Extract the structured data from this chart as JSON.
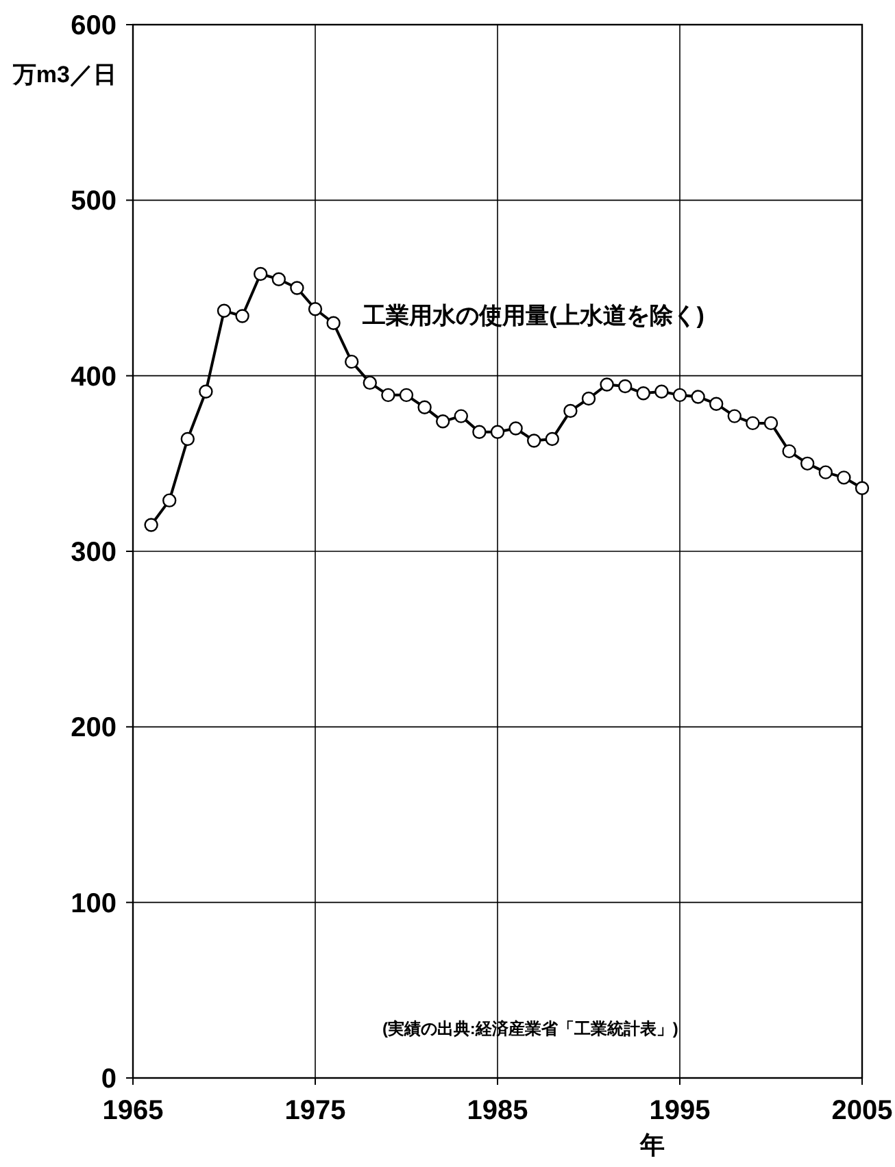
{
  "chart_data": {
    "type": "line",
    "xlabel": "年",
    "ylabel": "万m3／日",
    "x": [
      1966,
      1967,
      1968,
      1969,
      1970,
      1971,
      1972,
      1973,
      1974,
      1975,
      1976,
      1977,
      1978,
      1979,
      1980,
      1981,
      1982,
      1983,
      1984,
      1985,
      1986,
      1987,
      1988,
      1989,
      1990,
      1991,
      1992,
      1993,
      1994,
      1995,
      1996,
      1997,
      1998,
      1999,
      2000,
      2001,
      2002,
      2003,
      2004,
      2005
    ],
    "series": [
      {
        "name": "工業用水の使用量(上水道を除く)",
        "color": "#000000",
        "values": [
          315,
          329,
          364,
          391,
          437,
          434,
          458,
          455,
          450,
          438,
          430,
          408,
          396,
          389,
          389,
          382,
          374,
          377,
          368,
          368,
          370,
          363,
          364,
          380,
          387,
          395,
          394,
          390,
          391,
          389,
          388,
          384,
          377,
          373,
          373,
          357,
          350,
          345,
          342,
          336
        ]
      }
    ],
    "xlim": [
      1965,
      2005
    ],
    "xticks": [
      1965,
      1975,
      1985,
      1995,
      2005
    ],
    "ylim": [
      0,
      600
    ],
    "yticks": [
      0,
      100,
      200,
      300,
      400,
      500,
      600
    ],
    "grid": true,
    "marker": "circle",
    "line_style": "solid",
    "annotations": [
      "(実績の出典:経済産業省「工業統計表」)"
    ]
  }
}
